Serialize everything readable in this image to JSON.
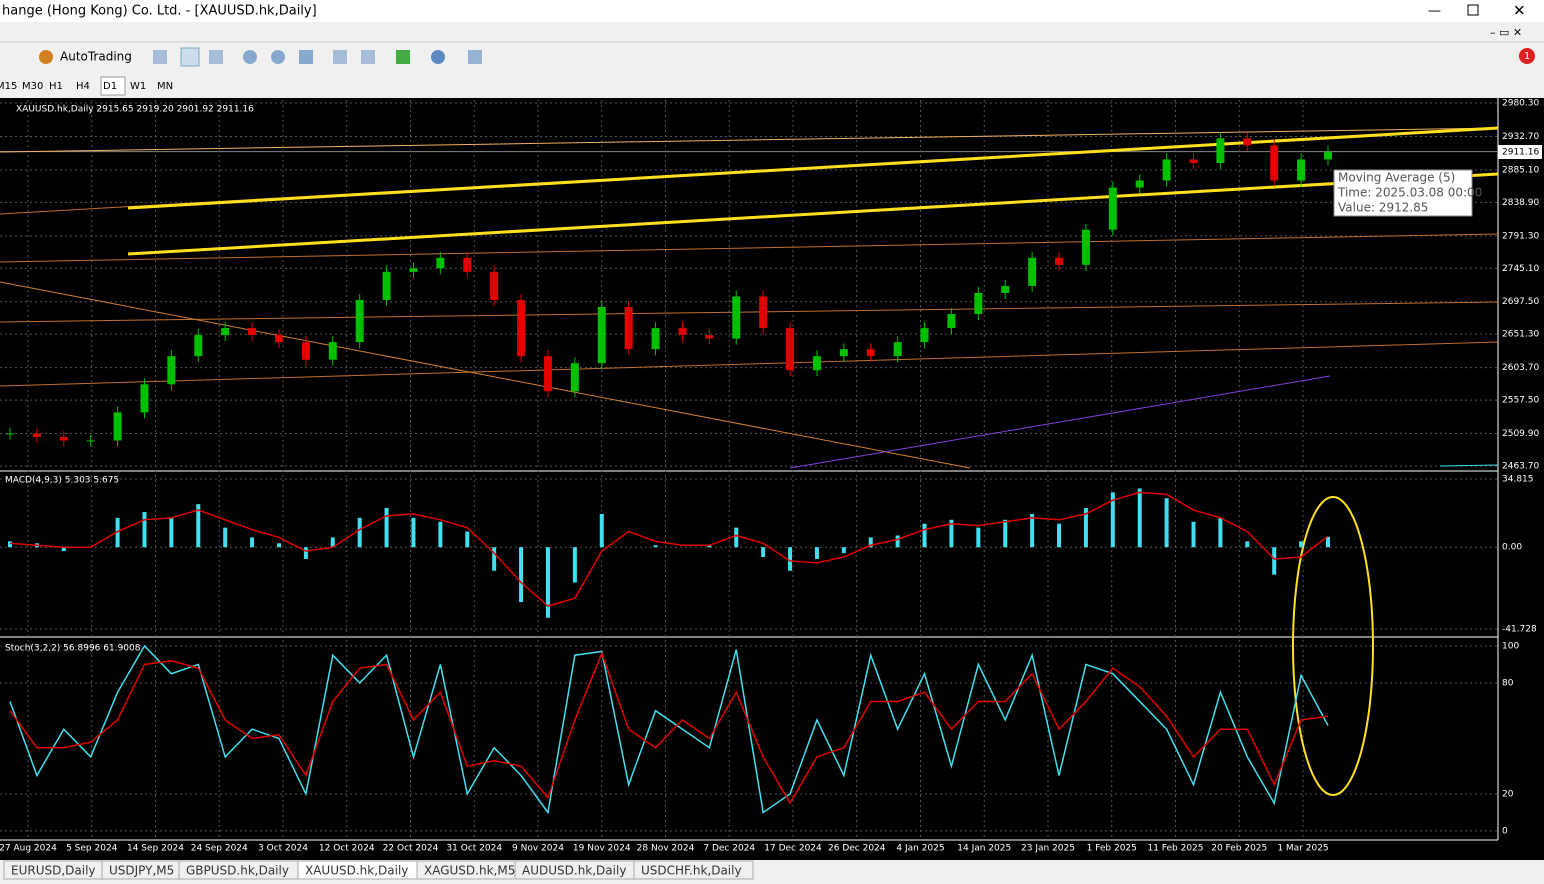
{
  "window": {
    "title": "hange (Hong Kong) Co. Ltd. - [XAUUSD.hk,Daily]"
  },
  "toolbar": {
    "autotrading": "AutoTrading",
    "badge": "1",
    "timeframes": [
      "M15",
      "M30",
      "H1",
      "H4",
      "D1",
      "W1",
      "MN"
    ]
  },
  "chart_data": [
    {
      "type": "candlestick",
      "title": "XAUUSD.hk,Daily  2915.65 2919.20 2901.92 2911.16",
      "current_price": {
        "value": 2911.16,
        "label": "2911.16"
      },
      "ylim": [
        2458.0,
        2984.6
      ],
      "yticks": [
        {
          "value": 2980.3,
          "label": "2980.30"
        },
        {
          "value": 2932.7,
          "label": "2932.70"
        },
        {
          "value": 2885.1,
          "label": "2885.10"
        },
        {
          "value": 2838.9,
          "label": "2838.90"
        },
        {
          "value": 2791.3,
          "label": "2791.30"
        },
        {
          "value": 2745.1,
          "label": "2745.10"
        },
        {
          "value": 2697.5,
          "label": "2697.50"
        },
        {
          "value": 2651.3,
          "label": "2651.30"
        },
        {
          "value": 2603.7,
          "label": "2603.70"
        },
        {
          "value": 2557.5,
          "label": "2557.50"
        },
        {
          "value": 2509.9,
          "label": "2509.90"
        },
        {
          "value": 2463.7,
          "label": "2463.70"
        }
      ],
      "up_color": "#00c000",
      "down_color": "#e00000",
      "values": [
        2510,
        2505,
        2500,
        2500,
        2540,
        2580,
        2620,
        2650,
        2660,
        2650,
        2640,
        2615,
        2640,
        2700,
        2740,
        2745,
        2760,
        2740,
        2700,
        2620,
        2570,
        2610,
        2690,
        2630,
        2660,
        2650,
        2645,
        2705,
        2660,
        2600,
        2620,
        2630,
        2620,
        2640,
        2660,
        2680,
        2710,
        2720,
        2760,
        2750,
        2800,
        2860,
        2870,
        2900,
        2895,
        2930,
        2920,
        2870,
        2900,
        2911
      ],
      "tooltip": [
        "Moving Average (5)",
        "Time: 2025.03.08 00:00",
        "Value: 2912.85"
      ]
    },
    {
      "type": "macd",
      "title": "MACD(4,9,3) 5.303 5.675",
      "ylim": [
        -44.79,
        37.37
      ],
      "yticks": [
        34.815,
        {
          "value": 0,
          "label": "0.00"
        },
        -41.728
      ],
      "series": [
        {
          "name": "MACD",
          "color": "#40e0f0",
          "values": [
            3,
            2,
            -2,
            0,
            15,
            18,
            15,
            22,
            10,
            5,
            2,
            -6,
            5,
            15,
            20,
            15,
            13,
            8,
            -12,
            -28,
            -36,
            -18,
            17,
            0,
            1,
            0,
            1,
            10,
            -5,
            -12,
            -6,
            -3,
            5,
            6,
            12,
            14,
            10,
            14,
            17,
            12,
            20,
            28,
            30,
            25,
            13,
            15,
            3,
            -14,
            3,
            5.3
          ]
        },
        {
          "name": "Signal",
          "color": "#e00000",
          "values": [
            2,
            1,
            0,
            0,
            8,
            14,
            15,
            19,
            14,
            9,
            5,
            -2,
            0,
            9,
            16,
            17,
            14,
            10,
            -3,
            -18,
            -30,
            -26,
            -2,
            8,
            3,
            1,
            1,
            6,
            2,
            -7,
            -8,
            -5,
            1,
            4,
            9,
            12,
            11,
            13,
            15,
            14,
            17,
            24,
            28,
            27,
            19,
            15,
            8,
            -6,
            -5,
            5.7
          ]
        }
      ]
    },
    {
      "type": "stochastic",
      "title": "Stoch(3,2,2) 56.8996 61.9008",
      "ylim": [
        -4.9,
        104.3
      ],
      "yticks": [
        100,
        80,
        20,
        0
      ],
      "series": [
        {
          "name": "Main",
          "color": "#40e0f0",
          "values": [
            70,
            30,
            55,
            40,
            75,
            100,
            85,
            90,
            40,
            55,
            50,
            20,
            95,
            80,
            95,
            40,
            90,
            20,
            45,
            30,
            10,
            95,
            97,
            25,
            65,
            55,
            45,
            98,
            10,
            20,
            60,
            30,
            95,
            55,
            85,
            35,
            90,
            60,
            95,
            30,
            90,
            85,
            70,
            55,
            25,
            75,
            40,
            15,
            84,
            57
          ]
        },
        {
          "name": "Signal",
          "color": "#e00000",
          "values": [
            65,
            45,
            45,
            48,
            60,
            90,
            92,
            88,
            60,
            50,
            52,
            30,
            70,
            88,
            90,
            60,
            75,
            35,
            38,
            35,
            18,
            60,
            96,
            55,
            45,
            60,
            50,
            75,
            40,
            15,
            40,
            45,
            70,
            70,
            75,
            55,
            70,
            70,
            85,
            55,
            70,
            88,
            78,
            62,
            40,
            55,
            55,
            25,
            60,
            62
          ]
        }
      ]
    }
  ],
  "date_labels": [
    "27 Aug 2024",
    "5 Sep 2024",
    "14 Sep 2024",
    "24 Sep 2024",
    "3 Oct 2024",
    "12 Oct 2024",
    "22 Oct 2024",
    "31 Oct 2024",
    "9 Nov 2024",
    "19 Nov 2024",
    "28 Nov 2024",
    "7 Dec 2024",
    "17 Dec 2024",
    "26 Dec 2024",
    "4 Jan 2025",
    "14 Jan 2025",
    "23 Jan 2025",
    "1 Feb 2025",
    "11 Feb 2025",
    "20 Feb 2025",
    "1 Mar 2025"
  ],
  "tabs": [
    "EURUSD,Daily",
    "USDJPY,M5",
    "GBPUSD.hk,Daily",
    "XAUUSD.hk,Daily",
    "XAGUSD.hk,M5",
    "AUDUSD.hk,Daily",
    "USDCHF.hk,Daily"
  ],
  "active_tab": 3
}
